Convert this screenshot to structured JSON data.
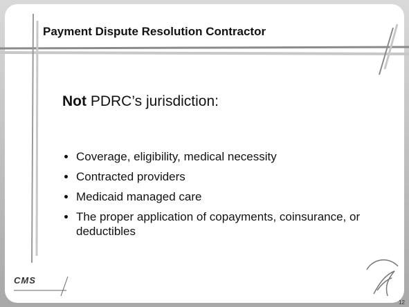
{
  "slide": {
    "title": "Payment Dispute Resolution Contractor",
    "heading": {
      "bold": "Not",
      "text": " PDRC’s jurisdiction:"
    },
    "bullets": [
      "Coverage, eligibility, medical necessity",
      "Contracted providers",
      "Medicaid managed care",
      "The proper application of copayments, coinsurance, or deductibles"
    ],
    "footer": {
      "logo": "CMS",
      "page_number": "12"
    }
  }
}
